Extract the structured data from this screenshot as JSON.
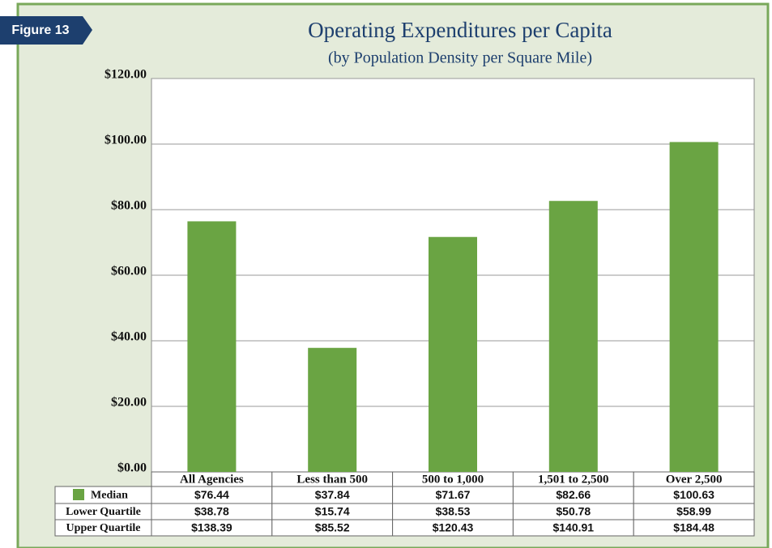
{
  "badge": "Figure 13",
  "chart_data": {
    "type": "bar",
    "title": "Operating Expenditures per Capita",
    "subtitle": "(by Population Density per Square Mile)",
    "categories": [
      "All Agencies",
      "Less than 500",
      "500 to 1,000",
      "1,501 to 2,500",
      "Over 2,500"
    ],
    "series": [
      {
        "name": "Median",
        "color": "#6aa443",
        "values": [
          76.44,
          37.84,
          71.67,
          82.66,
          100.63
        ],
        "value_labels": [
          "$76.44",
          "$37.84",
          "$71.67",
          "$82.66",
          "$100.63"
        ]
      }
    ],
    "ylim": [
      0,
      120
    ],
    "yticks": [
      {
        "value": 0,
        "label": "$0.00"
      },
      {
        "value": 20,
        "label": "$20.00"
      },
      {
        "value": 40,
        "label": "$40.00"
      },
      {
        "value": 60,
        "label": "$60.00"
      },
      {
        "value": 80,
        "label": "$80.00"
      },
      {
        "value": 100,
        "label": "$100.00"
      },
      {
        "value": 120,
        "label": "$120.00"
      }
    ],
    "grid": true
  },
  "table": {
    "rows": [
      {
        "label": "Lower Quartile",
        "cells": [
          "$38.78",
          "$15.74",
          "$38.53",
          "$50.78",
          "$58.99"
        ]
      },
      {
        "label": "Upper Quartile",
        "cells": [
          "$138.39",
          "$85.52",
          "$120.43",
          "$140.91",
          "$184.48"
        ]
      }
    ]
  }
}
